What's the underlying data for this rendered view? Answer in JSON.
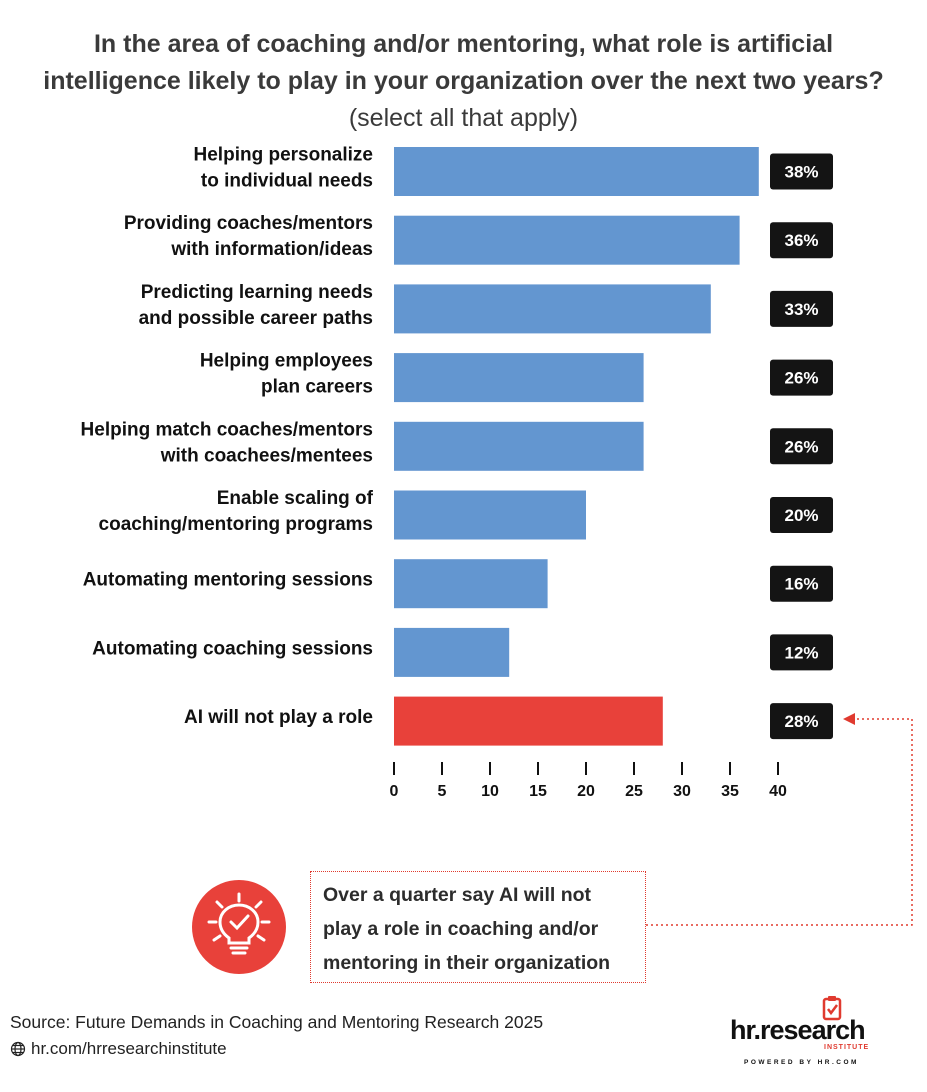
{
  "title": {
    "main": "In the area of coaching and/or mentoring, what role is artificial intelligence likely to play in your organization over the next two years?",
    "sub": "(select all that apply)"
  },
  "chart_data": {
    "type": "bar",
    "orientation": "horizontal",
    "categories": [
      "Helping personalize\nto individual needs",
      "Providing coaches/mentors\nwith information/ideas",
      "Predicting learning needs\nand possible career paths",
      "Helping employees\nplan careers",
      "Helping match coaches/mentors\nwith coachees/mentees",
      "Enable scaling of\ncoaching/mentoring programs",
      "Automating mentoring sessions",
      "Automating coaching sessions",
      "AI will not play a role"
    ],
    "values": [
      38,
      36,
      33,
      26,
      26,
      20,
      16,
      12,
      28
    ],
    "value_labels": [
      "38%",
      "36%",
      "33%",
      "26%",
      "26%",
      "20%",
      "16%",
      "12%",
      "28%"
    ],
    "xlim": [
      0,
      40
    ],
    "xticks": [
      0,
      5,
      10,
      15,
      20,
      25,
      30,
      35,
      40
    ],
    "grid": false,
    "colors": {
      "bar": "#6396d0",
      "highlight_bar": "#e8413a",
      "highlight_index": 8,
      "label_box": "#141414",
      "callout_line": "#e03a2f"
    }
  },
  "callout": {
    "text": "Over a quarter say AI will not play a role in coaching and/or mentoring in their organization",
    "icon": "lightbulb-check-icon"
  },
  "footer": {
    "source": "Source:  Future Demands in Coaching and Mentoring Research 2025",
    "website": "hr.com/hrresearchinstitute",
    "website_icon": "globe-icon"
  },
  "logo": {
    "wordmark": "hr.research",
    "sub": "INSTITUTE",
    "powered": "POWERED BY HR.COM"
  }
}
